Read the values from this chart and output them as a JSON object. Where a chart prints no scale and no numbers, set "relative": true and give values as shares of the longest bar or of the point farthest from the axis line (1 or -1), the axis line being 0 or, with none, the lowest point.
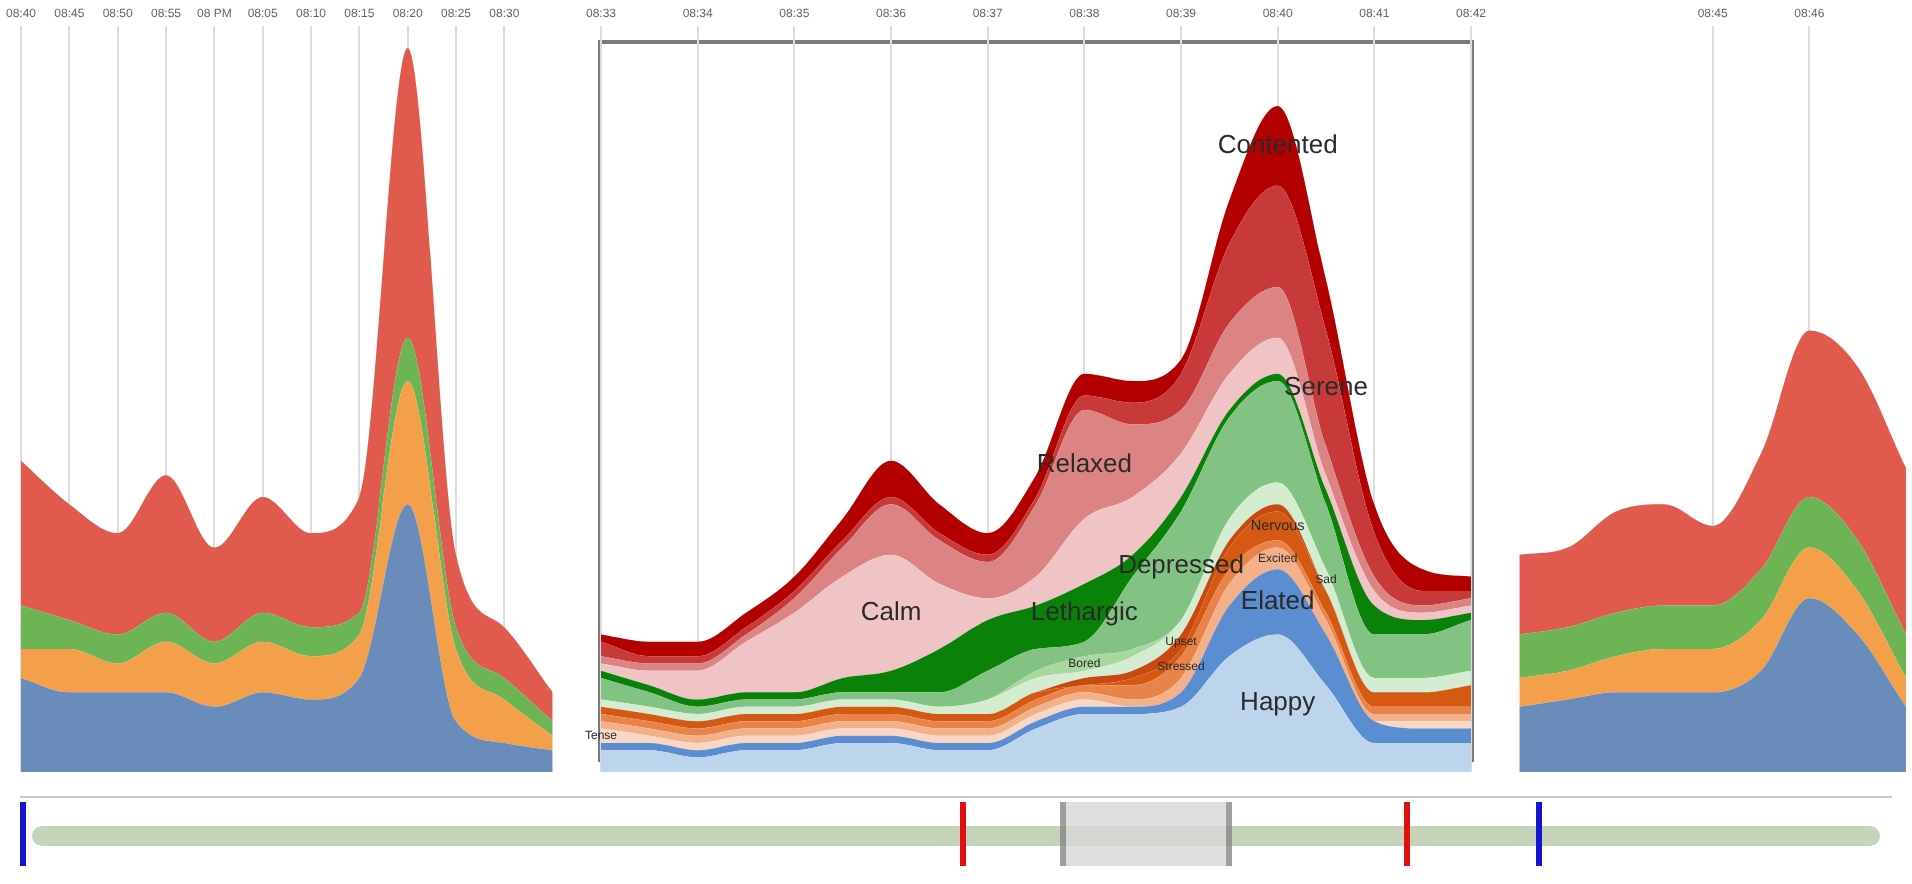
{
  "chart_data": {
    "type": "area",
    "stacked": true,
    "relative": true,
    "grid": "x",
    "tick_labels": "x",
    "categories": [
      "08:40",
      "08:45",
      "08:50",
      "08:55",
      "08 PM",
      "08:05",
      "08:10",
      "08:15",
      "08:20",
      "08:25",
      "08:30",
      null,
      "08:33",
      null,
      "08:34",
      null,
      "08:35",
      null,
      "08:36",
      null,
      "08:37",
      null,
      "08:38",
      null,
      "08:39",
      null,
      "08:40",
      null,
      "08:41",
      null,
      "08:42",
      null,
      null,
      null,
      null,
      "08:45",
      null,
      "08:46",
      null,
      null
    ],
    "series": [
      {
        "color": "#6a8cba",
        "values": [
          0.13,
          0.11,
          0.11,
          0.11,
          0.09,
          0.11,
          0.1,
          0.13,
          0.37,
          0.07,
          0.04,
          0.03,
          null,
          null,
          null,
          null,
          null,
          null,
          null,
          null,
          null,
          null,
          null,
          null,
          null,
          null,
          null,
          null,
          null,
          null,
          null,
          0.09,
          0.1,
          0.11,
          0.11,
          0.11,
          0.14,
          0.24,
          0.19,
          0.09
        ]
      },
      {
        "color": "#f4a04a",
        "values": [
          0.04,
          0.06,
          0.04,
          0.07,
          0.06,
          0.07,
          0.06,
          0.06,
          0.17,
          0.1,
          0.06,
          0.02,
          null,
          null,
          null,
          null,
          null,
          null,
          null,
          null,
          null,
          null,
          null,
          null,
          null,
          null,
          null,
          null,
          null,
          null,
          null,
          0.04,
          0.04,
          0.05,
          0.06,
          0.06,
          0.07,
          0.07,
          0.06,
          0.04
        ]
      },
      {
        "color": "#6cb454",
        "values": [
          0.06,
          0.04,
          0.04,
          0.04,
          0.03,
          0.04,
          0.04,
          0.03,
          0.06,
          0.03,
          0.03,
          0.02,
          null,
          null,
          null,
          null,
          null,
          null,
          null,
          null,
          null,
          null,
          null,
          null,
          null,
          null,
          null,
          null,
          null,
          null,
          null,
          0.06,
          0.06,
          0.06,
          0.06,
          0.06,
          0.07,
          0.07,
          0.07,
          0.06
        ]
      },
      {
        "color": "#e05a4e",
        "values": [
          0.2,
          0.16,
          0.14,
          0.19,
          0.13,
          0.16,
          0.13,
          0.16,
          0.4,
          0.1,
          0.07,
          0.04,
          null,
          null,
          null,
          null,
          null,
          null,
          null,
          null,
          null,
          null,
          null,
          null,
          null,
          null,
          null,
          null,
          null,
          null,
          null,
          0.11,
          0.11,
          0.14,
          0.14,
          0.11,
          0.16,
          0.23,
          0.24,
          0.23
        ]
      },
      {
        "name": "Happy",
        "color": "#bcd4ec",
        "values": [
          null,
          null,
          null,
          null,
          null,
          null,
          null,
          null,
          null,
          null,
          null,
          null,
          0.03,
          0.03,
          0.02,
          0.03,
          0.03,
          0.04,
          0.04,
          0.03,
          0.03,
          0.06,
          0.08,
          0.08,
          0.09,
          0.16,
          0.19,
          0.12,
          0.04,
          0.04,
          0.04,
          null,
          null,
          null,
          null,
          null,
          null,
          null,
          null,
          null
        ]
      },
      {
        "name": "Elated",
        "color": "#5a8ed0",
        "values": [
          null,
          null,
          null,
          null,
          null,
          null,
          null,
          null,
          null,
          null,
          null,
          null,
          0.01,
          0.01,
          0.01,
          0.01,
          0.01,
          0.01,
          0.01,
          0.01,
          0.01,
          0.01,
          0.01,
          0.01,
          0.02,
          0.07,
          0.09,
          0.07,
          0.03,
          0.02,
          0.02,
          null,
          null,
          null,
          null,
          null,
          null,
          null,
          null,
          null
        ]
      },
      {
        "name": "Tense",
        "color": "#f8d8c4",
        "values": [
          null,
          null,
          null,
          null,
          null,
          null,
          null,
          null,
          null,
          null,
          null,
          null,
          0.02,
          0.01,
          0.01,
          0.01,
          0.01,
          0.01,
          0.01,
          0.01,
          0.01,
          0.01,
          0.01,
          0,
          0,
          0,
          0,
          0,
          0,
          0.01,
          0.01,
          null,
          null,
          null,
          null,
          null,
          null,
          null,
          null,
          null
        ]
      },
      {
        "name": "Excited",
        "color": "#f4b08a",
        "values": [
          null,
          null,
          null,
          null,
          null,
          null,
          null,
          null,
          null,
          null,
          null,
          null,
          0.01,
          0.01,
          0.01,
          0.01,
          0.01,
          0.01,
          0.01,
          0.01,
          0.01,
          0.01,
          0.01,
          0.01,
          0.02,
          0.03,
          0.03,
          0.02,
          0.01,
          0.01,
          0.01,
          null,
          null,
          null,
          null,
          null,
          null,
          null,
          null,
          null
        ]
      },
      {
        "name": "Stressed",
        "color": "#e8844a",
        "values": [
          null,
          null,
          null,
          null,
          null,
          null,
          null,
          null,
          null,
          null,
          null,
          null,
          0.01,
          0.01,
          0.01,
          0.01,
          0.01,
          0.01,
          0.01,
          0.01,
          0.01,
          0.01,
          0.01,
          0.02,
          0.03,
          0.02,
          0.01,
          0.01,
          0.01,
          0.01,
          0.01,
          null,
          null,
          null,
          null,
          null,
          null,
          null,
          null,
          null
        ]
      },
      {
        "name": "Nervous",
        "color": "#d45a14",
        "values": [
          null,
          null,
          null,
          null,
          null,
          null,
          null,
          null,
          null,
          null,
          null,
          null,
          0.01,
          0.01,
          0.01,
          0.01,
          0.01,
          0.01,
          0.01,
          0.01,
          0.01,
          0.01,
          0,
          0.01,
          0.01,
          0.03,
          0.04,
          0.03,
          0.02,
          0.02,
          0.03,
          null,
          null,
          null,
          null,
          null,
          null,
          null,
          null,
          null
        ]
      },
      {
        "name": "Upset",
        "color": "#c84a10",
        "values": [
          null,
          null,
          null,
          null,
          null,
          null,
          null,
          null,
          null,
          null,
          null,
          null,
          0,
          0,
          0,
          0,
          0,
          0,
          0,
          0,
          0,
          0,
          0.01,
          0.01,
          0.02,
          0.01,
          0.01,
          0,
          0,
          0,
          0,
          null,
          null,
          null,
          null,
          null,
          null,
          null,
          null,
          null
        ]
      },
      {
        "name": "Sad",
        "color": "#d4ecd0",
        "values": [
          null,
          null,
          null,
          null,
          null,
          null,
          null,
          null,
          null,
          null,
          null,
          null,
          0.01,
          0.01,
          0.01,
          0.01,
          0.01,
          0.01,
          0.01,
          0.01,
          0.02,
          0.02,
          0.01,
          0.02,
          0.02,
          0.03,
          0.03,
          0.03,
          0.02,
          0.02,
          0.02,
          null,
          null,
          null,
          null,
          null,
          null,
          null,
          null,
          null
        ]
      },
      {
        "name": "Bored",
        "color": "#a8d8a0",
        "values": [
          null,
          null,
          null,
          null,
          null,
          null,
          null,
          null,
          null,
          null,
          null,
          null,
          0,
          0,
          0,
          0,
          0,
          0,
          0,
          0,
          0,
          0.01,
          0.02,
          0.01,
          0,
          0,
          0,
          0,
          0,
          0,
          0,
          null,
          null,
          null,
          null,
          null,
          null,
          null,
          null,
          null
        ]
      },
      {
        "name": "Depressed",
        "color": "#82c282",
        "values": [
          null,
          null,
          null,
          null,
          null,
          null,
          null,
          null,
          null,
          null,
          null,
          null,
          0.03,
          0.02,
          0.01,
          0.01,
          0.01,
          0.01,
          0.01,
          0.02,
          0.04,
          0.03,
          0.02,
          0.1,
          0.15,
          0.14,
          0.14,
          0.09,
          0.06,
          0.06,
          0.07,
          null,
          null,
          null,
          null,
          null,
          null,
          null,
          null,
          null
        ]
      },
      {
        "name": "Lethargic",
        "color": "#0a820a",
        "values": [
          null,
          null,
          null,
          null,
          null,
          null,
          null,
          null,
          null,
          null,
          null,
          null,
          0.01,
          0.01,
          0.01,
          0.01,
          0.01,
          0.02,
          0.03,
          0.06,
          0.07,
          0.06,
          0.08,
          0.03,
          0.02,
          0.01,
          0.01,
          0.02,
          0.04,
          0.02,
          0.01,
          null,
          null,
          null,
          null,
          null,
          null,
          null,
          null,
          null
        ]
      },
      {
        "name": "Calm",
        "color": "#f0c4c4",
        "values": [
          null,
          null,
          null,
          null,
          null,
          null,
          null,
          null,
          null,
          null,
          null,
          null,
          0.01,
          0.02,
          0.04,
          0.07,
          0.11,
          0.14,
          0.16,
          0.09,
          0.03,
          0.04,
          0.09,
          0.08,
          0.06,
          0.05,
          0.05,
          0.02,
          0.02,
          0.01,
          0.01,
          null,
          null,
          null,
          null,
          null,
          null,
          null,
          null,
          null
        ]
      },
      {
        "name": "Relaxed",
        "color": "#dc8484",
        "values": [
          null,
          null,
          null,
          null,
          null,
          null,
          null,
          null,
          null,
          null,
          null,
          null,
          0.01,
          0.01,
          0.01,
          0.01,
          0.02,
          0.04,
          0.07,
          0.06,
          0.05,
          0.1,
          0.15,
          0.1,
          0.06,
          0.07,
          0.07,
          0.04,
          0.02,
          0.01,
          0.01,
          null,
          null,
          null,
          null,
          null,
          null,
          null,
          null,
          null
        ]
      },
      {
        "name": "Serene",
        "color": "#c83a3a",
        "values": [
          null,
          null,
          null,
          null,
          null,
          null,
          null,
          null,
          null,
          null,
          null,
          null,
          0.02,
          0.01,
          0.01,
          0.01,
          0.01,
          0.01,
          0.01,
          0.01,
          0.01,
          0.01,
          0.02,
          0.03,
          0.05,
          0.11,
          0.14,
          0.16,
          0.06,
          0.02,
          0.01,
          null,
          null,
          null,
          null,
          null,
          null,
          null,
          null,
          null
        ]
      },
      {
        "name": "Contented",
        "color": "#b30000",
        "values": [
          null,
          null,
          null,
          null,
          null,
          null,
          null,
          null,
          null,
          null,
          null,
          null,
          0.01,
          0.02,
          0.02,
          0.02,
          0.02,
          0.03,
          0.05,
          0.04,
          0.03,
          0.03,
          0.03,
          0.03,
          0.02,
          0.06,
          0.11,
          0.07,
          0.04,
          0.03,
          0.02,
          null,
          null,
          null,
          null,
          null,
          null,
          null,
          null,
          null
        ]
      }
    ]
  }
}
